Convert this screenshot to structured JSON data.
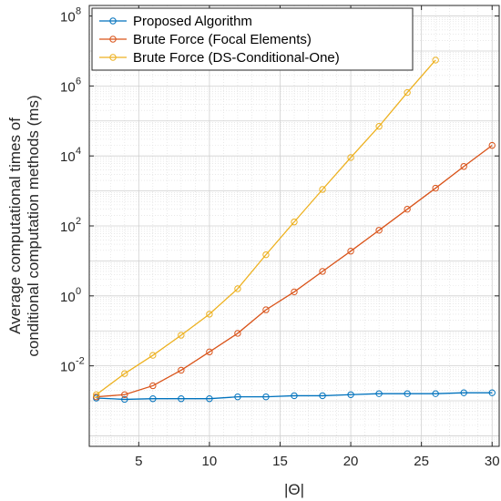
{
  "chart_data": {
    "type": "line",
    "xlabel": "|Θ|",
    "ylabel_line1": "Average computational times of",
    "ylabel_line2": "conditional computation methods (ms)",
    "xlim": [
      1.5,
      30.5
    ],
    "ylim": [
      5e-05,
      200000000
    ],
    "yscale": "log",
    "x_ticks": [
      5,
      10,
      15,
      20,
      25,
      30
    ],
    "x_tick_labels": [
      "5",
      "10",
      "15",
      "20",
      "25",
      "30"
    ],
    "y_ticks": [
      0.01,
      1,
      100,
      10000,
      1000000,
      100000000
    ],
    "y_tick_labels": [
      {
        "base": "10",
        "exp": "-2"
      },
      {
        "base": "10",
        "exp": "0"
      },
      {
        "base": "10",
        "exp": "2"
      },
      {
        "base": "10",
        "exp": "4"
      },
      {
        "base": "10",
        "exp": "6"
      },
      {
        "base": "10",
        "exp": "8"
      }
    ],
    "grid": true,
    "minor_grid": true,
    "legend_position": "top-left",
    "series": [
      {
        "name": "Proposed Algorithm",
        "color": "#0072BD",
        "x": [
          2,
          4,
          6,
          8,
          10,
          12,
          14,
          16,
          18,
          20,
          22,
          24,
          26,
          28,
          30
        ],
        "y": [
          0.0012,
          0.0011,
          0.00115,
          0.00115,
          0.00115,
          0.0013,
          0.0013,
          0.0014,
          0.0014,
          0.0015,
          0.0016,
          0.0016,
          0.0016,
          0.0017,
          0.0017
        ]
      },
      {
        "name": "Brute Force (Focal Elements)",
        "color": "#D95319",
        "x": [
          2,
          4,
          6,
          8,
          10,
          12,
          14,
          16,
          18,
          20,
          22,
          24,
          26,
          28,
          30
        ],
        "y": [
          0.0013,
          0.0015,
          0.0027,
          0.0075,
          0.025,
          0.085,
          0.4,
          1.3,
          5,
          19,
          75,
          300,
          1200,
          5000,
          20000
        ]
      },
      {
        "name": "Brute Force (DS-Conditional-One)",
        "color": "#EDB120",
        "x": [
          2,
          4,
          6,
          8,
          10,
          12,
          14,
          16,
          18,
          20,
          22,
          24,
          26
        ],
        "y": [
          0.0015,
          0.006,
          0.02,
          0.075,
          0.3,
          1.6,
          15,
          130,
          1100,
          9000,
          70000,
          650000,
          5500000
        ]
      }
    ]
  }
}
